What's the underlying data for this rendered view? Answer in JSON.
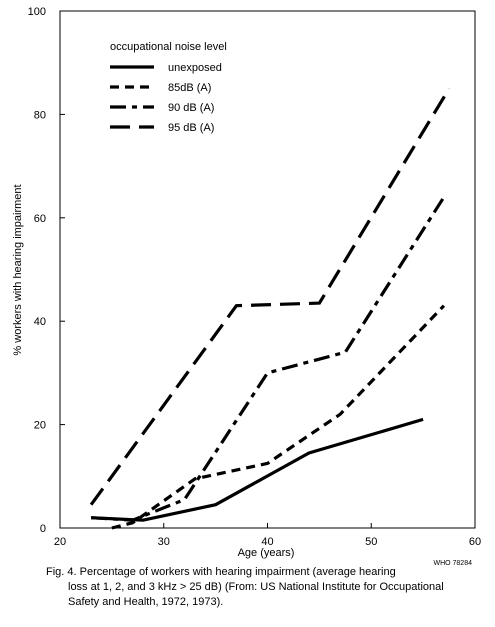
{
  "chart_data": {
    "type": "line",
    "xlabel": "Age (years)",
    "ylabel": "% workers with hearing impairment",
    "xlim": [
      20,
      60
    ],
    "ylim": [
      0,
      100
    ],
    "x_ticks": [
      20,
      30,
      40,
      50,
      60
    ],
    "y_ticks": [
      0,
      20,
      40,
      60,
      80,
      100
    ],
    "grid": false,
    "legend": {
      "title": "occupational noise level",
      "placement": "top-left"
    },
    "series": [
      {
        "name": "unexposed",
        "dash": "solid",
        "points": [
          [
            23,
            2
          ],
          [
            28,
            1.5
          ],
          [
            35,
            4.5
          ],
          [
            44,
            14.5
          ],
          [
            55,
            21
          ]
        ]
      },
      {
        "name": "85dB (A)",
        "dash": "short-dash",
        "points": [
          [
            25,
            0
          ],
          [
            27,
            1
          ],
          [
            33,
            9.5
          ],
          [
            40,
            12.5
          ],
          [
            47,
            22
          ],
          [
            57,
            43
          ]
        ]
      },
      {
        "name": "90 dB (A)",
        "dash": "dash-dot",
        "points": [
          [
            23,
            2
          ],
          [
            27,
            1.5
          ],
          [
            32,
            5.5
          ],
          [
            40,
            30
          ],
          [
            47.5,
            34
          ],
          [
            57,
            64
          ]
        ]
      },
      {
        "name": "95 dB (A)",
        "dash": "long-dash",
        "points": [
          [
            23,
            4.5
          ],
          [
            37,
            43
          ],
          [
            45,
            43.5
          ],
          [
            57.5,
            85
          ]
        ]
      }
    ]
  },
  "figure": {
    "caption_first": "Fig. 4. Percentage of workers with hearing impairment (average hearing",
    "caption_rest": "loss at 1, 2, and 3 kHz > 25 dB) (From: US National Institute for Occupational Safety and Health, 1972, 1973).",
    "code": "WHO 78284"
  },
  "colors": {
    "line": "#000000",
    "background": "#ffffff"
  }
}
